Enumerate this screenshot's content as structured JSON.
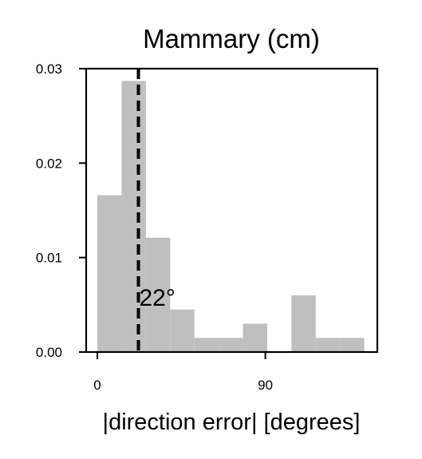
{
  "chart_data": {
    "type": "histogram",
    "title": "Mammary (cm)",
    "xlabel": "|direction error| [degrees]",
    "ylabel": "",
    "xlim": [
      -6,
      150
    ],
    "ylim": [
      0,
      0.03
    ],
    "bin_width": 13,
    "bins": [
      {
        "start": 0,
        "end": 13,
        "density": 0.0166
      },
      {
        "start": 13,
        "end": 26,
        "density": 0.0287
      },
      {
        "start": 26,
        "end": 39,
        "density": 0.0121
      },
      {
        "start": 39,
        "end": 52,
        "density": 0.0045
      },
      {
        "start": 52,
        "end": 65,
        "density": 0.0015
      },
      {
        "start": 65,
        "end": 78,
        "density": 0.0015
      },
      {
        "start": 78,
        "end": 91,
        "density": 0.003
      },
      {
        "start": 91,
        "end": 104,
        "density": 0.0
      },
      {
        "start": 104,
        "end": 117,
        "density": 0.006
      },
      {
        "start": 117,
        "end": 130,
        "density": 0.0015
      },
      {
        "start": 130,
        "end": 143,
        "density": 0.0015
      }
    ],
    "x_ticks": [
      0,
      90
    ],
    "x_tick_labels": [
      "0",
      "90"
    ],
    "y_ticks": [
      0,
      0.01,
      0.02,
      0.03
    ],
    "y_tick_labels": [
      "0.00",
      "0.01",
      "0.02",
      "0.03"
    ],
    "median_line": {
      "value": 22,
      "label": "22°",
      "style": "dashed"
    },
    "bar_color": "#bfbfbf",
    "line_color": "#000000",
    "grid": false,
    "legend": "none"
  }
}
